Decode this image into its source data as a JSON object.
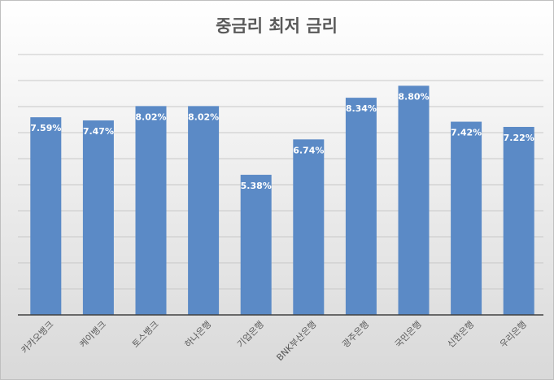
{
  "chart_data": {
    "type": "bar",
    "title": "중금리 최저 금리",
    "categories": [
      "카카오뱅크",
      "케이뱅크",
      "토스뱅크",
      "하나은행",
      "기업은행",
      "BNK부산은행",
      "광주은행",
      "국민은행",
      "신한은행",
      "우리은행"
    ],
    "values": [
      7.59,
      7.47,
      8.02,
      8.02,
      5.38,
      6.74,
      8.34,
      8.8,
      7.42,
      7.22
    ],
    "value_labels": [
      "7.59%",
      "7.47%",
      "8.02%",
      "8.02%",
      "5.38%",
      "6.74%",
      "8.34%",
      "8.80%",
      "7.42%",
      "7.22%"
    ],
    "color": "#5b8ac6",
    "ylim": [
      0,
      10
    ],
    "yticks": [
      0,
      1,
      2,
      3,
      4,
      5,
      6,
      7,
      8,
      9,
      10
    ],
    "grid": true
  }
}
